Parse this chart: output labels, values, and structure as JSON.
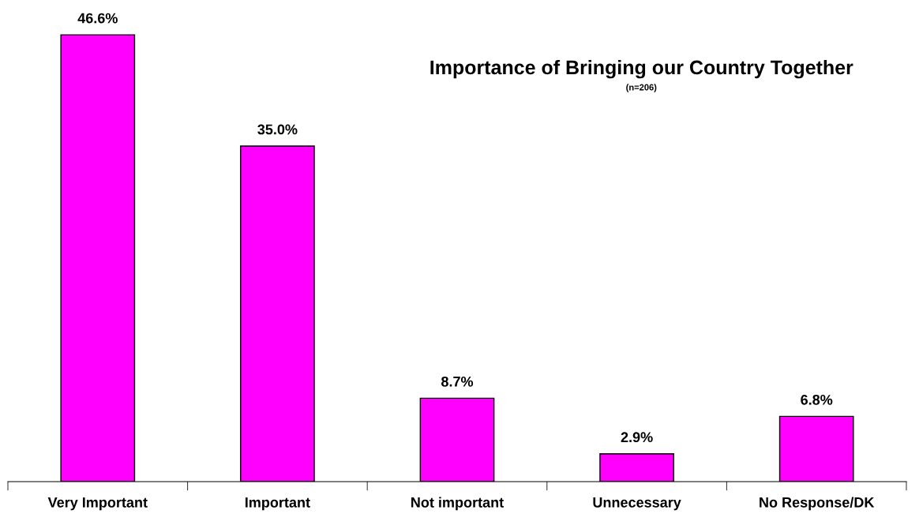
{
  "chart_data": {
    "type": "bar",
    "title": "Importance of Bringing our Country Together",
    "subtitle": "(n=206)",
    "categories": [
      "Very Important",
      "Important",
      "Not important",
      "Unnecessary",
      "No Response/DK"
    ],
    "values": [
      46.6,
      35.0,
      8.7,
      2.9,
      6.8
    ],
    "color": "#ff00ff",
    "value_labels": [
      "46.6%",
      "35.0%",
      "8.7%",
      "2.9%",
      "6.8%"
    ],
    "grid": false,
    "legend": false
  }
}
